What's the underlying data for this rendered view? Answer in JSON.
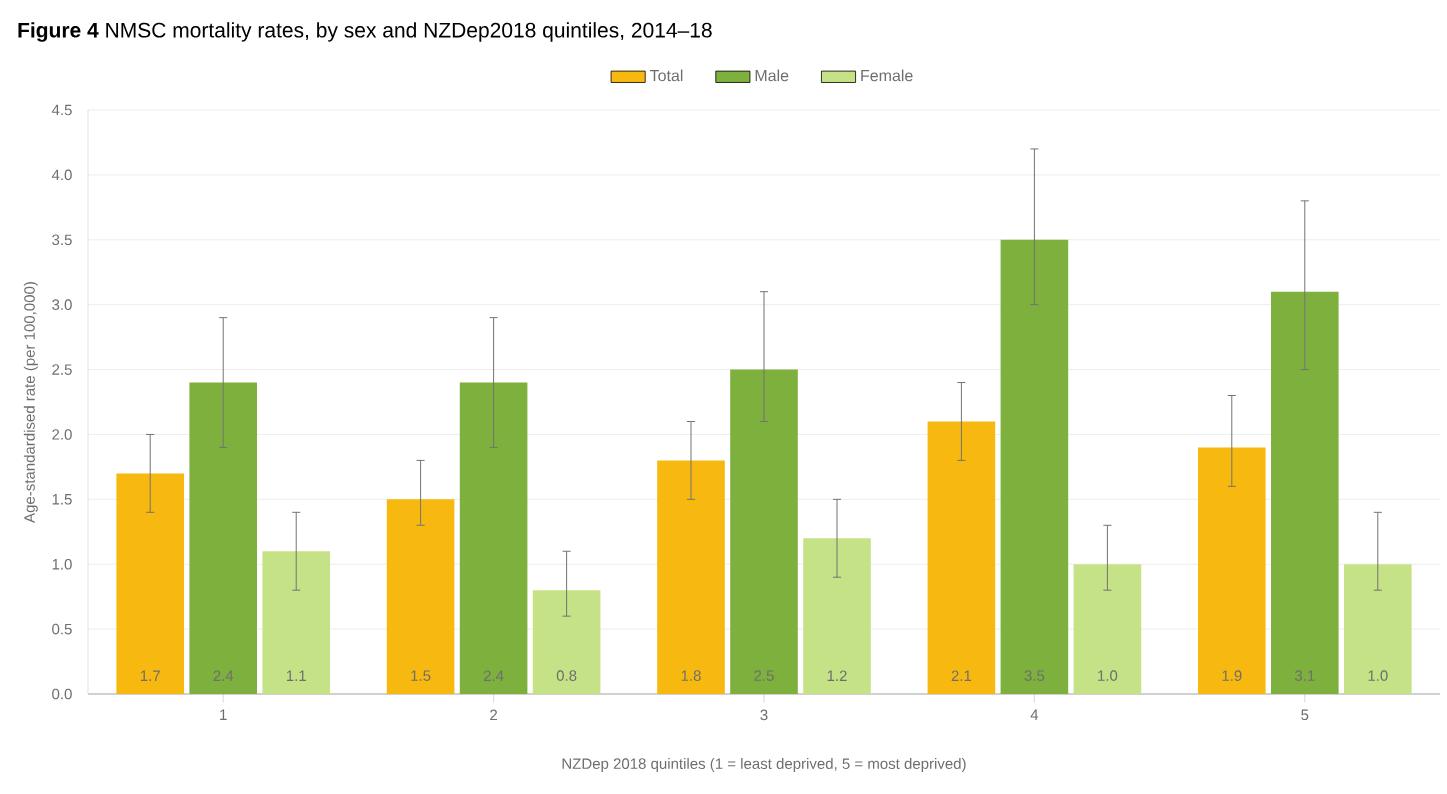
{
  "chart_data": {
    "type": "bar",
    "title": "**Figure 4** NMSC mortality rates, by sex and NZDep2018 quintiles, 2014–18",
    "xlabel": "NZDep 2018 quintiles (1 = least deprived, 5 = most deprived)",
    "ylabel": "Age-standardised rate (per 100,000)",
    "categories": [
      "1",
      "2",
      "3",
      "4",
      "5"
    ],
    "series": [
      {
        "name": "Total",
        "color": "#f7b90f",
        "values": [
          1.7,
          1.5,
          1.8,
          2.1,
          1.9
        ],
        "errors": [
          [
            1.4,
            2.0
          ],
          [
            1.3,
            1.8
          ],
          [
            1.5,
            2.1
          ],
          [
            1.8,
            2.4
          ],
          [
            1.6,
            2.3
          ]
        ],
        "value_labels": [
          "1.7",
          "1.5",
          "1.8",
          "2.1",
          "1.9"
        ]
      },
      {
        "name": "Male",
        "color": "#7db03c",
        "values": [
          2.4,
          2.4,
          2.5,
          3.5,
          3.1
        ],
        "errors": [
          [
            1.9,
            2.9
          ],
          [
            1.9,
            2.9
          ],
          [
            2.1,
            3.1
          ],
          [
            3.0,
            4.2
          ],
          [
            2.5,
            3.8
          ]
        ],
        "value_labels": [
          "2.4",
          "2.4",
          "2.5",
          "3.5",
          "3.1"
        ]
      },
      {
        "name": "Female",
        "color": "#c5e286",
        "values": [
          1.1,
          0.8,
          1.2,
          1.0,
          1.0
        ],
        "errors": [
          [
            0.8,
            1.4
          ],
          [
            0.6,
            1.1
          ],
          [
            0.9,
            1.5
          ],
          [
            0.8,
            1.3
          ],
          [
            0.8,
            1.4
          ]
        ],
        "value_labels": [
          "1.1",
          "0.8",
          "1.2",
          "1.0",
          "1.0"
        ]
      }
    ],
    "ylim": [
      0,
      4.5
    ],
    "yticks": [
      {
        "value": 0,
        "label": "0.0"
      },
      0.5,
      {
        "value": 1,
        "label": "1.0"
      },
      1.5,
      {
        "value": 2,
        "label": "2.0"
      },
      2.5,
      {
        "value": 3,
        "label": "3.0"
      },
      3.5,
      {
        "value": 4,
        "label": "4.0"
      },
      4.5
    ],
    "grid": "y",
    "legend": "top"
  }
}
